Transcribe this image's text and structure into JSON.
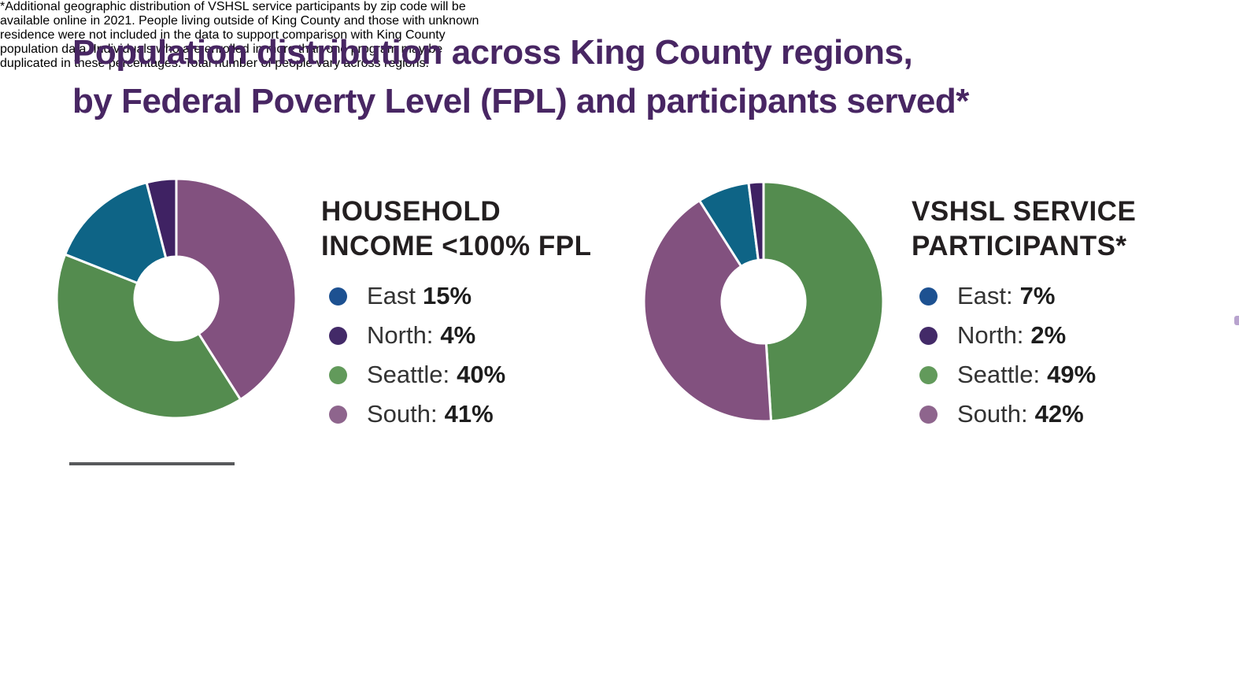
{
  "title": {
    "line1": "Population distribution across King County regions,",
    "line2": "by Federal Poverty Level (FPL) and participants served*"
  },
  "colors": {
    "title_text": "#482663",
    "heading_text": "#231f20",
    "divider": "#58595b",
    "footnote_text": "#3f3f3f",
    "regions": {
      "East": {
        "slice": "#0e6486",
        "bullet": "#1d5191"
      },
      "North": {
        "slice": "#3f2263",
        "bullet": "#432a68"
      },
      "Seattle": {
        "slice": "#548c4f",
        "bullet": "#629a5b"
      },
      "South": {
        "slice": "#82517f",
        "bullet": "#8e658d"
      }
    }
  },
  "chart_data": [
    {
      "type": "pie",
      "subtype": "donut",
      "title": "HOUSEHOLD INCOME <100% FPL",
      "title_lines": [
        "HOUSEHOLD",
        "INCOME <100% FPL"
      ],
      "categories": [
        "East",
        "North",
        "Seattle",
        "South"
      ],
      "values": [
        15,
        4,
        40,
        41
      ],
      "unit": "%",
      "legend_position": "right",
      "legend_items": [
        {
          "region": "East",
          "label": "East",
          "value": "15%"
        },
        {
          "region": "North",
          "label": "North:",
          "value": "4%"
        },
        {
          "region": "Seattle",
          "label": "Seattle:",
          "value": "40%"
        },
        {
          "region": "South",
          "label": "South:",
          "value": "41%"
        }
      ],
      "slices_clockwise_from_top": [
        {
          "region": "South",
          "value": 41
        },
        {
          "region": "Seattle",
          "value": 40
        },
        {
          "region": "East",
          "value": 15
        },
        {
          "region": "North",
          "value": 4
        }
      ]
    },
    {
      "type": "pie",
      "subtype": "donut",
      "title": "VSHSL SERVICE PARTICIPANTS*",
      "title_lines": [
        "VSHSL SERVICE",
        "PARTICIPANTS*"
      ],
      "categories": [
        "East",
        "North",
        "Seattle",
        "South"
      ],
      "values": [
        7,
        2,
        49,
        42
      ],
      "unit": "%",
      "legend_position": "right",
      "legend_items": [
        {
          "region": "East",
          "label": "East:",
          "value": "7%"
        },
        {
          "region": "North",
          "label": "North:",
          "value": "2%"
        },
        {
          "region": "Seattle",
          "label": "Seattle:",
          "value": "49%"
        },
        {
          "region": "South",
          "label": "South:",
          "value": "42%"
        }
      ],
      "slices_clockwise_from_top": [
        {
          "region": "Seattle",
          "value": 49
        },
        {
          "region": "South",
          "value": 42
        },
        {
          "region": "East",
          "value": 7
        },
        {
          "region": "North",
          "value": 2
        }
      ]
    }
  ],
  "footnote": {
    "lines": [
      "*Additional geographic distribution of VSHSL service participants by zip code will be",
      "available online in 2021. People living outside of King County and those with unknown",
      "residence were not included in the data to support comparison with King County",
      "population data. Individuals who are enrolled in more than one program may be",
      "duplicated in these percentages. Total number of people vary across regions."
    ]
  }
}
